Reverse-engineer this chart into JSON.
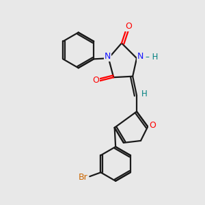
{
  "background_color": "#e8e8e8",
  "bond_color": "#1a1a1a",
  "atom_colors": {
    "N": "#1414ff",
    "O": "#ff0000",
    "Br": "#cc6600",
    "H_label": "#008080"
  },
  "figsize": [
    3.0,
    3.0
  ],
  "dpi": 100,
  "lw": 1.6
}
